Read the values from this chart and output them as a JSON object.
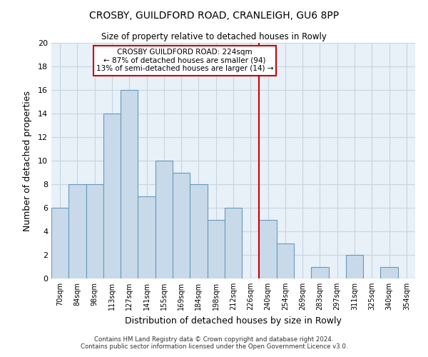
{
  "title": "CROSBY, GUILDFORD ROAD, CRANLEIGH, GU6 8PP",
  "subtitle": "Size of property relative to detached houses in Rowly",
  "xlabel": "Distribution of detached houses by size in Rowly",
  "ylabel": "Number of detached properties",
  "bar_labels": [
    "70sqm",
    "84sqm",
    "98sqm",
    "113sqm",
    "127sqm",
    "141sqm",
    "155sqm",
    "169sqm",
    "184sqm",
    "198sqm",
    "212sqm",
    "226sqm",
    "240sqm",
    "254sqm",
    "269sqm",
    "283sqm",
    "297sqm",
    "311sqm",
    "325sqm",
    "340sqm",
    "354sqm"
  ],
  "bar_values": [
    6,
    8,
    8,
    14,
    16,
    7,
    10,
    9,
    8,
    5,
    6,
    0,
    5,
    3,
    0,
    1,
    0,
    2,
    0,
    1,
    0
  ],
  "bar_color": "#c8daea",
  "bar_edge_color": "#6699bb",
  "vline_x_index": 11,
  "vline_color": "#cc0000",
  "ylim": [
    0,
    20
  ],
  "yticks": [
    0,
    2,
    4,
    6,
    8,
    10,
    12,
    14,
    16,
    18,
    20
  ],
  "annotation_title": "CROSBY GUILDFORD ROAD: 224sqm",
  "annotation_line1": "← 87% of detached houses are smaller (94)",
  "annotation_line2": "13% of semi-detached houses are larger (14) →",
  "annotation_box_color": "#ffffff",
  "annotation_box_edge_color": "#cc0000",
  "footer_line1": "Contains HM Land Registry data © Crown copyright and database right 2024.",
  "footer_line2": "Contains public sector information licensed under the Open Government Licence v3.0.",
  "background_color": "#ffffff",
  "grid_color": "#c8d4e0",
  "plot_bg_color": "#e8f0f8"
}
